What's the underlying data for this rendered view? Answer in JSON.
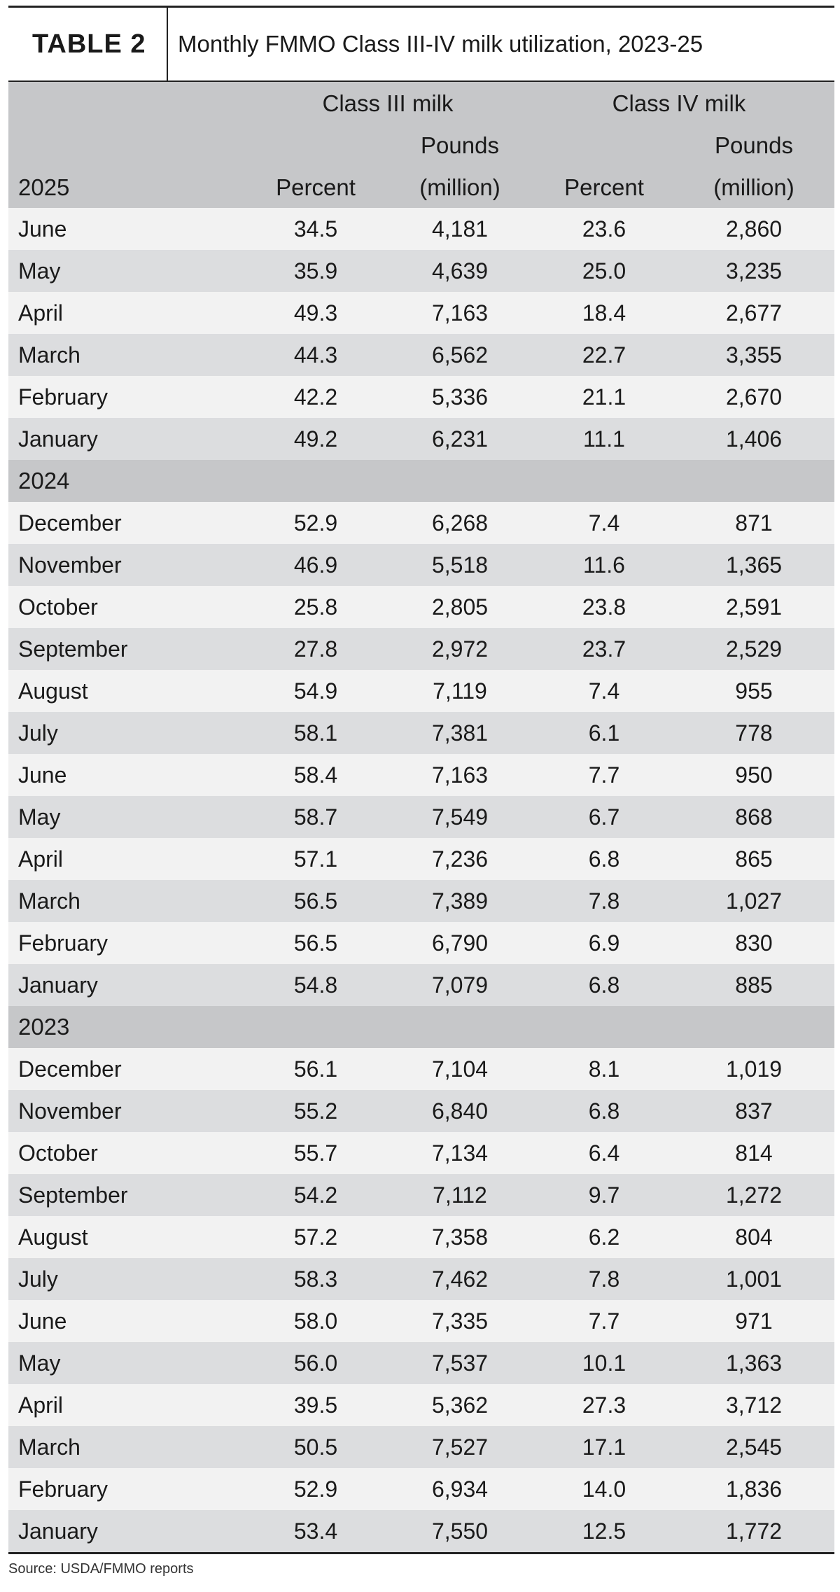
{
  "table": {
    "label": "TABLE 2",
    "title": "Monthly FMMO Class III-IV milk utilization, 2023-25",
    "group_headers": [
      "Class III milk",
      "Class IV milk"
    ],
    "col_top": [
      "Pounds",
      "Pounds"
    ],
    "col_bottom": [
      "Percent",
      "(million)",
      "Percent",
      "(million)"
    ],
    "first_year": "2025",
    "sections": [
      {
        "year": "2025",
        "rows": [
          {
            "month": "June",
            "c3_pct": "34.5",
            "c3_lbs": "4,181",
            "c4_pct": "23.6",
            "c4_lbs": "2,860"
          },
          {
            "month": "May",
            "c3_pct": "35.9",
            "c3_lbs": "4,639",
            "c4_pct": "25.0",
            "c4_lbs": "3,235"
          },
          {
            "month": "April",
            "c3_pct": "49.3",
            "c3_lbs": "7,163",
            "c4_pct": "18.4",
            "c4_lbs": "2,677"
          },
          {
            "month": "March",
            "c3_pct": "44.3",
            "c3_lbs": "6,562",
            "c4_pct": "22.7",
            "c4_lbs": "3,355"
          },
          {
            "month": "February",
            "c3_pct": "42.2",
            "c3_lbs": "5,336",
            "c4_pct": "21.1",
            "c4_lbs": "2,670"
          },
          {
            "month": "January",
            "c3_pct": "49.2",
            "c3_lbs": "6,231",
            "c4_pct": "11.1",
            "c4_lbs": "1,406"
          }
        ]
      },
      {
        "year": "2024",
        "rows": [
          {
            "month": "December",
            "c3_pct": "52.9",
            "c3_lbs": "6,268",
            "c4_pct": "7.4",
            "c4_lbs": "871"
          },
          {
            "month": "November",
            "c3_pct": "46.9",
            "c3_lbs": "5,518",
            "c4_pct": "11.6",
            "c4_lbs": "1,365"
          },
          {
            "month": "October",
            "c3_pct": "25.8",
            "c3_lbs": "2,805",
            "c4_pct": "23.8",
            "c4_lbs": "2,591"
          },
          {
            "month": "September",
            "c3_pct": "27.8",
            "c3_lbs": "2,972",
            "c4_pct": "23.7",
            "c4_lbs": "2,529"
          },
          {
            "month": "August",
            "c3_pct": "54.9",
            "c3_lbs": "7,119",
            "c4_pct": "7.4",
            "c4_lbs": "955"
          },
          {
            "month": "July",
            "c3_pct": "58.1",
            "c3_lbs": "7,381",
            "c4_pct": "6.1",
            "c4_lbs": "778"
          },
          {
            "month": "June",
            "c3_pct": "58.4",
            "c3_lbs": "7,163",
            "c4_pct": "7.7",
            "c4_lbs": "950"
          },
          {
            "month": "May",
            "c3_pct": "58.7",
            "c3_lbs": "7,549",
            "c4_pct": "6.7",
            "c4_lbs": "868"
          },
          {
            "month": "April",
            "c3_pct": "57.1",
            "c3_lbs": "7,236",
            "c4_pct": "6.8",
            "c4_lbs": "865"
          },
          {
            "month": "March",
            "c3_pct": "56.5",
            "c3_lbs": "7,389",
            "c4_pct": "7.8",
            "c4_lbs": "1,027"
          },
          {
            "month": "February",
            "c3_pct": "56.5",
            "c3_lbs": "6,790",
            "c4_pct": "6.9",
            "c4_lbs": "830"
          },
          {
            "month": "January",
            "c3_pct": "54.8",
            "c3_lbs": "7,079",
            "c4_pct": "6.8",
            "c4_lbs": "885"
          }
        ]
      },
      {
        "year": "2023",
        "rows": [
          {
            "month": "December",
            "c3_pct": "56.1",
            "c3_lbs": "7,104",
            "c4_pct": "8.1",
            "c4_lbs": "1,019"
          },
          {
            "month": "November",
            "c3_pct": "55.2",
            "c3_lbs": "6,840",
            "c4_pct": "6.8",
            "c4_lbs": "837"
          },
          {
            "month": "October",
            "c3_pct": "55.7",
            "c3_lbs": "7,134",
            "c4_pct": "6.4",
            "c4_lbs": "814"
          },
          {
            "month": "September",
            "c3_pct": "54.2",
            "c3_lbs": "7,112",
            "c4_pct": "9.7",
            "c4_lbs": "1,272"
          },
          {
            "month": "August",
            "c3_pct": "57.2",
            "c3_lbs": "7,358",
            "c4_pct": "6.2",
            "c4_lbs": "804"
          },
          {
            "month": "July",
            "c3_pct": "58.3",
            "c3_lbs": "7,462",
            "c4_pct": "7.8",
            "c4_lbs": "1,001"
          },
          {
            "month": "June",
            "c3_pct": "58.0",
            "c3_lbs": "7,335",
            "c4_pct": "7.7",
            "c4_lbs": "971"
          },
          {
            "month": "May",
            "c3_pct": "56.0",
            "c3_lbs": "7,537",
            "c4_pct": "10.1",
            "c4_lbs": "1,363"
          },
          {
            "month": "April",
            "c3_pct": "39.5",
            "c3_lbs": "5,362",
            "c4_pct": "27.3",
            "c4_lbs": "3,712"
          },
          {
            "month": "March",
            "c3_pct": "50.5",
            "c3_lbs": "7,527",
            "c4_pct": "17.1",
            "c4_lbs": "2,545"
          },
          {
            "month": "February",
            "c3_pct": "52.9",
            "c3_lbs": "6,934",
            "c4_pct": "14.0",
            "c4_lbs": "1,836"
          },
          {
            "month": "January",
            "c3_pct": "53.4",
            "c3_lbs": "7,550",
            "c4_pct": "12.5",
            "c4_lbs": "1,772"
          }
        ]
      }
    ],
    "source": "Source: USDA/FMMO reports"
  }
}
